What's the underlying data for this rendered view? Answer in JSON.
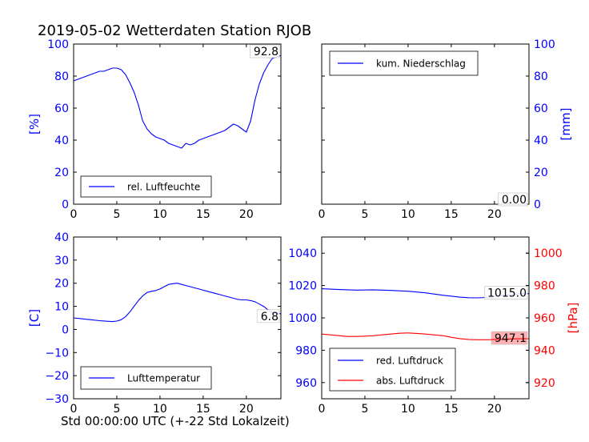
{
  "figure": {
    "title": "2019-05-02 Wetterdaten Station RJOB",
    "xlabel": "Std 00:00:00 UTC (+-22 Std Lokalzeit)"
  },
  "colors": {
    "blue": "#0000ff",
    "red": "#ff0000",
    "black": "#000000"
  },
  "chart_data": [
    {
      "type": "line",
      "panel": "humidity",
      "ylabel": "[%]",
      "xlim": [
        0,
        24
      ],
      "ylim": [
        0,
        100
      ],
      "xticks": [
        "0",
        "5",
        "10",
        "15",
        "20"
      ],
      "yticks": [
        "0",
        "20",
        "40",
        "60",
        "80",
        "100"
      ],
      "legend": "bottom-left",
      "last_value_label": "92.8",
      "series": [
        {
          "name": "rel. Luftfeuchte",
          "color": "#0000ff",
          "x": [
            0,
            0.5,
            1,
            1.5,
            2,
            2.5,
            3,
            3.5,
            4,
            4.5,
            5,
            5.5,
            6,
            6.5,
            7,
            7.5,
            8,
            8.5,
            9,
            9.5,
            10,
            10.5,
            11,
            11.5,
            12,
            12.5,
            13,
            13.5,
            14,
            14.5,
            15,
            15.5,
            16,
            16.5,
            17,
            17.5,
            18,
            18.5,
            19,
            19.5,
            20,
            20.5,
            21,
            21.5,
            22,
            22.5,
            23,
            23.5,
            24
          ],
          "y": [
            77,
            78,
            79,
            80,
            81,
            82,
            83,
            83,
            84,
            85,
            85,
            84,
            81,
            76,
            70,
            62,
            52,
            47,
            44,
            42,
            41,
            40,
            38,
            37,
            36,
            35,
            38,
            37,
            38,
            40,
            41,
            42,
            43,
            44,
            45,
            46,
            48,
            50,
            49,
            47,
            45,
            52,
            65,
            75,
            82,
            87,
            91,
            92,
            92.8
          ]
        }
      ]
    },
    {
      "type": "line",
      "panel": "precipitation",
      "ylabel": "[mm]",
      "xlim": [
        0,
        24
      ],
      "ylim": [
        0,
        100
      ],
      "xticks": [
        "0",
        "5",
        "10",
        "15",
        "20"
      ],
      "yticks": [
        "0",
        "20",
        "40",
        "60",
        "80",
        "100"
      ],
      "legend": "top-left",
      "last_value_label": "0.00",
      "series": [
        {
          "name": "kum. Niederschlag",
          "color": "#0000ff",
          "x": [
            0,
            24
          ],
          "y": [
            0,
            0
          ]
        }
      ]
    },
    {
      "type": "line",
      "panel": "temperature",
      "ylabel": "[C]",
      "xlim": [
        0,
        24
      ],
      "ylim": [
        -30,
        40
      ],
      "xticks": [
        "0",
        "5",
        "10",
        "15",
        "20"
      ],
      "yticks": [
        "−30",
        "−20",
        "−10",
        "0",
        "10",
        "20",
        "30",
        "40"
      ],
      "legend": "bottom-left",
      "last_value_label": "6.8",
      "series": [
        {
          "name": "Lufttemperatur",
          "color": "#0000ff",
          "x": [
            0,
            1,
            2,
            3,
            4,
            4.5,
            5,
            5.5,
            6,
            6.5,
            7,
            7.5,
            8,
            8.5,
            9,
            9.5,
            10,
            10.5,
            11,
            11.5,
            12,
            12.5,
            13,
            13.5,
            14,
            14.5,
            15,
            15.5,
            16,
            16.5,
            17,
            17.5,
            18,
            18.5,
            19,
            19.5,
            20,
            20.5,
            21,
            21.5,
            22,
            22.5,
            23,
            23.5,
            24
          ],
          "y": [
            5,
            4.6,
            4.2,
            3.8,
            3.5,
            3.4,
            3.6,
            4.2,
            5.5,
            7.5,
            10,
            12.5,
            14.5,
            16,
            16.5,
            16.8,
            17.5,
            18.5,
            19.5,
            19.8,
            20,
            19.5,
            19,
            18.5,
            18,
            17.5,
            17,
            16.5,
            16,
            15.5,
            15,
            14.5,
            14,
            13.5,
            13,
            12.8,
            12.8,
            12.5,
            12,
            11,
            10,
            8.5,
            7.2,
            6.9,
            6.8
          ]
        }
      ]
    },
    {
      "type": "line",
      "panel": "pressure",
      "ylabel": "[hPa]",
      "xlim": [
        0,
        24
      ],
      "ylim": [
        950,
        1050
      ],
      "ylim_right": [
        910,
        1010
      ],
      "xticks": [
        "0",
        "5",
        "10",
        "15",
        "20"
      ],
      "yticks": [
        "960",
        "980",
        "1000",
        "1020",
        "1040"
      ],
      "yticks_right": [
        "920",
        "940",
        "960",
        "980",
        "1000"
      ],
      "legend": "bottom-left",
      "last_value_label": "1015.0",
      "last_value_label_right": "947.1",
      "series": [
        {
          "name": "red. Luftdruck",
          "color": "#0000ff",
          "axis": "left",
          "x": [
            0,
            2,
            4,
            6,
            8,
            10,
            12,
            14,
            16,
            17,
            18,
            19,
            20,
            21,
            22,
            23,
            24
          ],
          "y": [
            1018,
            1017.5,
            1017.2,
            1017.4,
            1017.0,
            1016.5,
            1015.5,
            1014.0,
            1012.8,
            1012.5,
            1012.4,
            1012.6,
            1013.2,
            1014.0,
            1014.6,
            1014.9,
            1015.0
          ]
        },
        {
          "name": "abs. Luftdruck",
          "color": "#ff0000",
          "axis": "right",
          "x": [
            0,
            1,
            2,
            3,
            4,
            5,
            6,
            7,
            8,
            9,
            10,
            11,
            12,
            13,
            14,
            15,
            16,
            17,
            18,
            19,
            20,
            21,
            22,
            23,
            24
          ],
          "y": [
            950,
            949.5,
            949,
            948.5,
            948.5,
            948.7,
            949,
            949.5,
            950,
            950.5,
            950.7,
            950.4,
            950,
            949.5,
            949,
            948,
            947.2,
            946.7,
            946.5,
            946.5,
            946.6,
            946.8,
            947.0,
            947.1,
            947.1
          ]
        }
      ]
    }
  ]
}
